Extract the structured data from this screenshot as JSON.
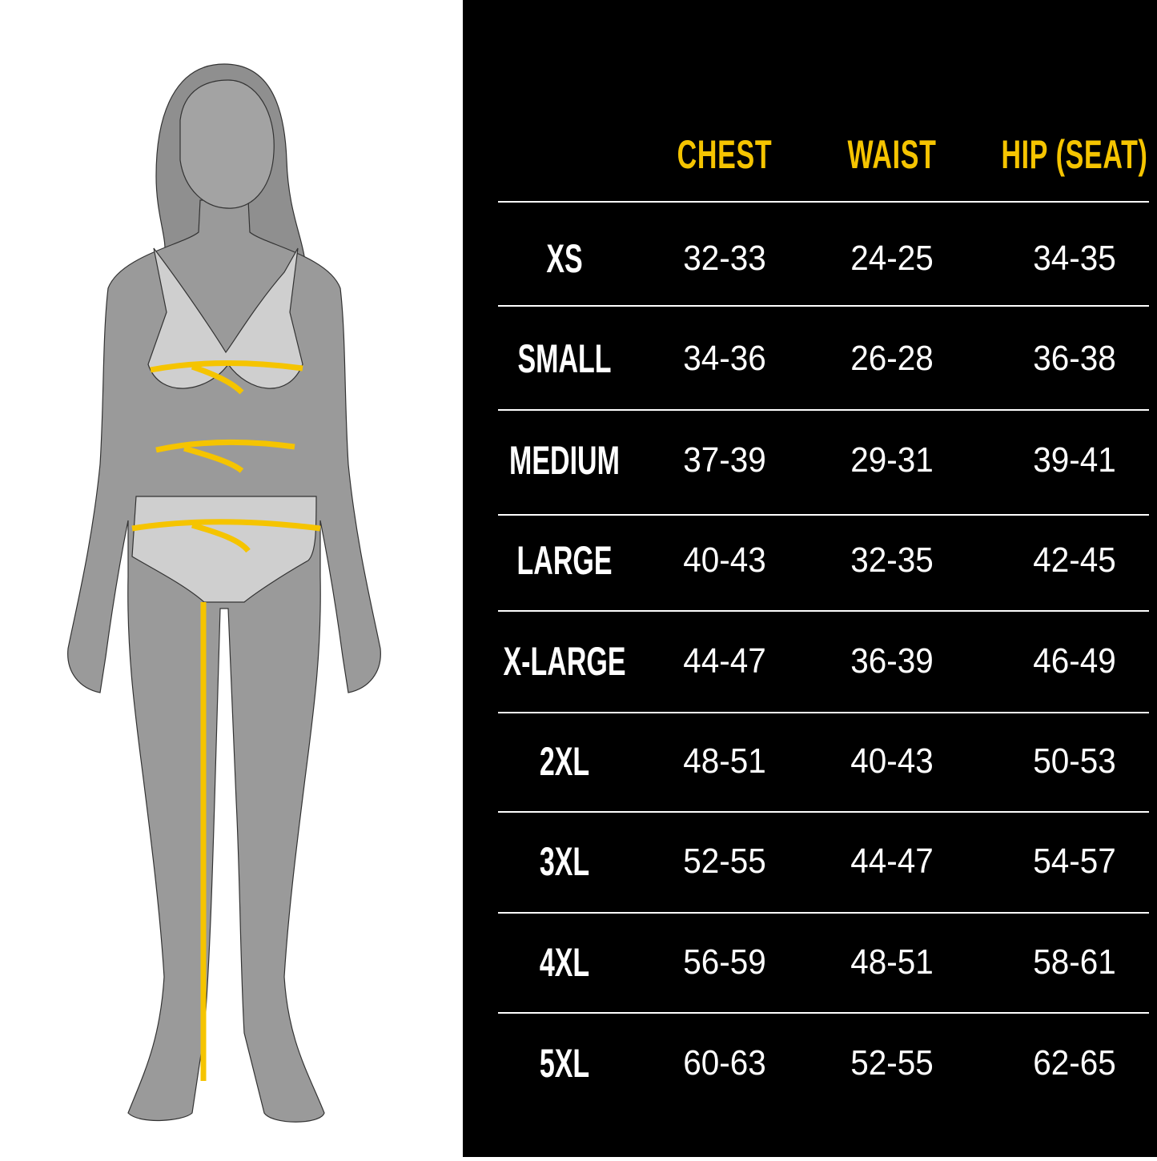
{
  "colors": {
    "accent": "#f5c400",
    "panel": "#000000",
    "figure": "#9a9a9a",
    "underwear": "#cfcfcf"
  },
  "figure": {
    "icon": "female-body-measurement-silhouette"
  },
  "table": {
    "headers": [
      "CHEST",
      "WAIST",
      "HIP (SEAT)"
    ],
    "rows": [
      {
        "size": "XS",
        "chest": "32-33",
        "waist": "24-25",
        "hip": "34-35"
      },
      {
        "size": "SMALL",
        "chest": "34-36",
        "waist": "26-28",
        "hip": "36-38"
      },
      {
        "size": "MEDIUM",
        "chest": "37-39",
        "waist": "29-31",
        "hip": "39-41"
      },
      {
        "size": "LARGE",
        "chest": "40-43",
        "waist": "32-35",
        "hip": "42-45"
      },
      {
        "size": "X-LARGE",
        "chest": "44-47",
        "waist": "36-39",
        "hip": "46-49"
      },
      {
        "size": "2XL",
        "chest": "48-51",
        "waist": "40-43",
        "hip": "50-53"
      },
      {
        "size": "3XL",
        "chest": "52-55",
        "waist": "44-47",
        "hip": "54-57"
      },
      {
        "size": "4XL",
        "chest": "56-59",
        "waist": "48-51",
        "hip": "58-61"
      },
      {
        "size": "5XL",
        "chest": "60-63",
        "waist": "52-55",
        "hip": "62-65"
      }
    ]
  }
}
